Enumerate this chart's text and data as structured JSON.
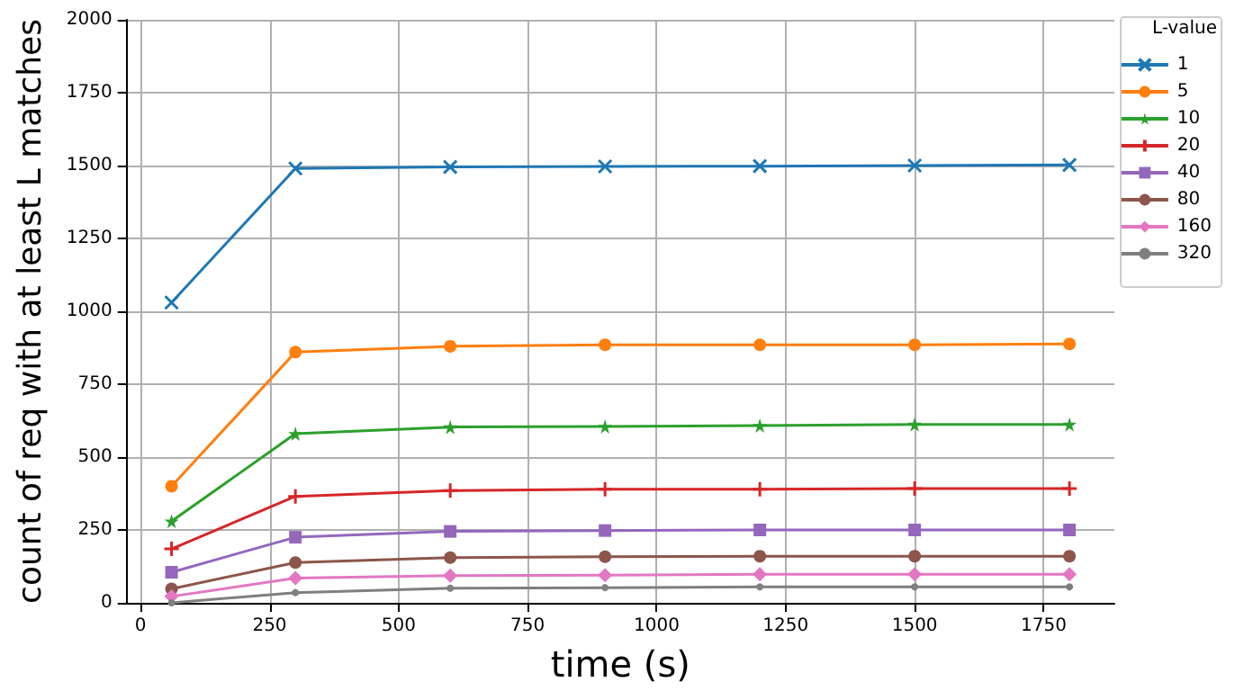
{
  "chart_data": {
    "type": "line",
    "xlabel": "time (s)",
    "ylabel": "count of req with at least L matches",
    "legend_title": "L-value",
    "legend": "top right",
    "grid": true,
    "x": [
      60,
      300,
      600,
      900,
      1200,
      1500,
      1800
    ],
    "xlim": [
      -27,
      1887
    ],
    "xticks": [
      0,
      250,
      500,
      750,
      1000,
      1250,
      1500,
      1750
    ],
    "ylim": [
      0,
      2000
    ],
    "yticks": [
      0,
      250,
      500,
      750,
      1000,
      1250,
      1500,
      1750,
      2000
    ],
    "series": [
      {
        "name": "1",
        "color": "#1f77b4",
        "marker": "cross",
        "values": [
          1030,
          1490,
          1495,
          1497,
          1498,
          1500,
          1502
        ]
      },
      {
        "name": "5",
        "color": "#ff7f0e",
        "marker": "circle",
        "values": [
          400,
          860,
          880,
          885,
          885,
          885,
          888
        ]
      },
      {
        "name": "10",
        "color": "#2ca02c",
        "marker": "star",
        "values": [
          280,
          580,
          603,
          605,
          608,
          612,
          612
        ]
      },
      {
        "name": "20",
        "color": "#d62728",
        "marker": "plus",
        "values": [
          185,
          365,
          385,
          390,
          390,
          392,
          392
        ]
      },
      {
        "name": "40",
        "color": "#9467bd",
        "marker": "square",
        "values": [
          105,
          225,
          245,
          248,
          250,
          250,
          250
        ]
      },
      {
        "name": "80",
        "color": "#8c564b",
        "marker": "circle",
        "values": [
          48,
          138,
          155,
          158,
          160,
          160,
          160
        ]
      },
      {
        "name": "160",
        "color": "#e377c2",
        "marker": "diamond",
        "values": [
          22,
          85,
          93,
          95,
          98,
          98,
          98
        ]
      },
      {
        "name": "320",
        "color": "#7f7f7f",
        "marker": "point",
        "values": [
          0,
          35,
          50,
          52,
          55,
          55,
          55
        ]
      }
    ]
  }
}
